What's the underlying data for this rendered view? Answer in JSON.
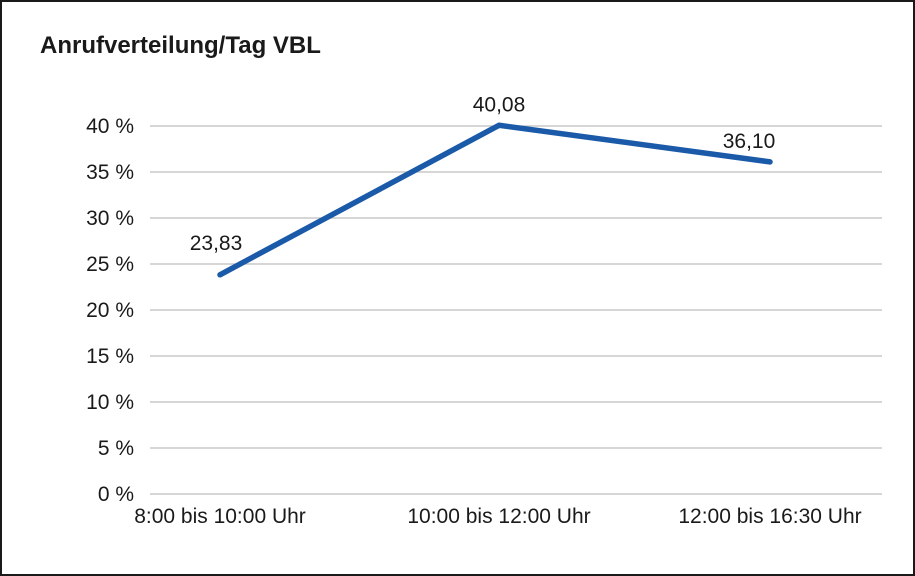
{
  "chart": {
    "title": "Anrufverteilung/Tag VBL"
  },
  "chart_data": {
    "type": "line",
    "title": "Anrufverteilung/Tag VBL",
    "categories": [
      "8:00 bis 10:00 Uhr",
      "10:00 bis 12:00 Uhr",
      "12:00 bis 16:30 Uhr"
    ],
    "values": [
      23.83,
      40.08,
      36.1
    ],
    "value_labels": [
      "23,83",
      "40,08",
      "36,10"
    ],
    "xlabel": "",
    "ylabel": "",
    "ylim": [
      0,
      40
    ],
    "ytick_step": 5,
    "ytick_labels": [
      "0 %",
      "5 %",
      "10 %",
      "15 %",
      "20 %",
      "25 %",
      "30 %",
      "35 %",
      "40 %"
    ],
    "grid": true,
    "legend_position": "none",
    "line_color": "#1a5aa8",
    "grid_color": "#bdbdbd",
    "text_color": "#1a1a1a"
  }
}
